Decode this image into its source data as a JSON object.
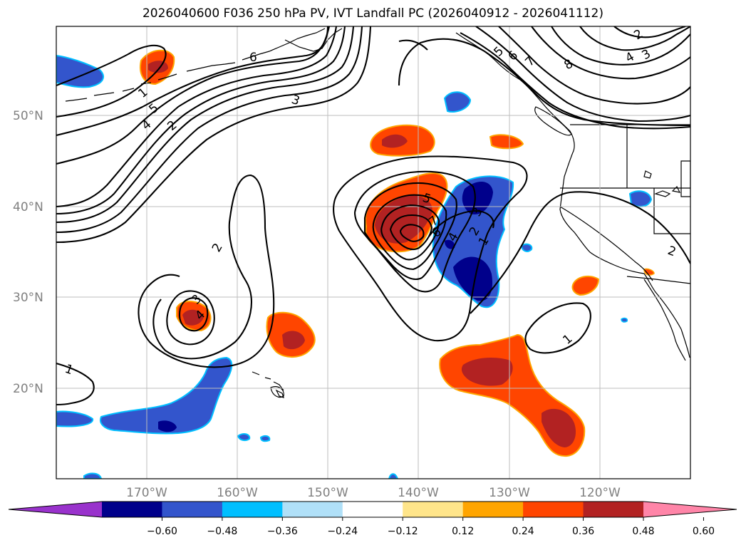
{
  "title": "2026040600 F036 250 hPa PV, IVT Landfall PC (2026040912 - 2026041112)",
  "axes": {
    "lon_labels": [
      "170°W",
      "160°W",
      "150°W",
      "140°W",
      "130°W",
      "120°W"
    ],
    "lat_labels": [
      "50°N",
      "40°N",
      "30°N",
      "20°N"
    ]
  },
  "colorbar": {
    "colors": [
      "#9932cc",
      "#00008b",
      "#3355cc",
      "#00bfff",
      "#b0e0f8",
      "#ffffff",
      "#ffe58a",
      "#ffa500",
      "#ff4500",
      "#b22222",
      "#ff85a8"
    ],
    "tick_labels": [
      "−0.60",
      "−0.48",
      "−0.36",
      "−0.24",
      "−0.12",
      "0.12",
      "0.24",
      "0.36",
      "0.48",
      "0.60"
    ]
  },
  "contour_labels": [
    "1",
    "5",
    "4",
    "2",
    "6",
    "3",
    "1",
    "2",
    "3",
    "4",
    "2",
    "1",
    "3",
    "4",
    "7",
    "6",
    "5",
    "5",
    "6",
    "7",
    "8",
    "2",
    "3",
    "4",
    "2",
    "1",
    "3",
    "4",
    "2",
    "1",
    "2",
    "1"
  ]
}
